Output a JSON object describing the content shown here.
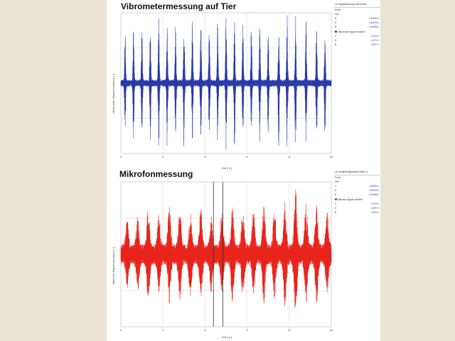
{
  "charts": {
    "vibro": {
      "title": "Vibrometermessung auf Tier",
      "ylabel": "Vibrometer-Signal normiert [ V ]",
      "xlabel": "Zeit [ s ]",
      "color": "#2a3aa8",
      "panel": {
        "header": "Lin Signalspannung Vibrometer ...",
        "probe": "Probe",
        "zeit": "Zeit",
        "rows1": [
          [
            "D",
            "4.40950 s"
          ],
          [
            "D",
            "4.40000 s"
          ],
          [
            "B",
            "0.44950 s"
          ]
        ],
        "legend": "Vibrometer Signal normiert",
        "rows2": [
          [
            "Y",
            "-0.094 V"
          ],
          [
            "D",
            "0.071 V"
          ],
          [
            "B",
            "0.097 V"
          ]
        ]
      }
    },
    "mikro": {
      "title": "Mikrofonmessung",
      "ylabel": "Mikrofon-Signal normiert [ V ]",
      "xlabel": "Zeit [ s ]",
      "color": "#e8241c",
      "panel": {
        "header": "Lin Vergleichsgeräusche Mikro 3...",
        "probe": "Probe",
        "zeit": "Zeit",
        "rows1": [
          [
            "Y",
            "4.40950 s"
          ],
          [
            "D",
            "4.40000 s"
          ],
          [
            "B",
            "0.44950 s"
          ]
        ],
        "legend": "Mikrofon-Signal normiert",
        "rows2": [
          [
            "Y",
            "0.203 V"
          ],
          [
            "D",
            "-0.009 V"
          ],
          [
            "B",
            "0.203 V"
          ]
        ]
      }
    }
  },
  "chart_data": [
    {
      "type": "line",
      "title": "Vibrometermessung auf Tier",
      "xlabel": "Zeit [ s ]",
      "ylabel": "Vibrometer-Signal normiert [ V ]",
      "xlim": [
        0,
        10
      ],
      "ylim": [
        -1,
        1
      ],
      "x_ticks": [
        "0",
        "2",
        "4",
        "6",
        "8",
        "10"
      ],
      "y_ticks": [
        "1",
        "0.5",
        "0",
        "-0.5",
        "-1"
      ],
      "grid": true,
      "series": [
        {
          "values_description_hidden": "",
          "burst_times": [
            0.2,
            0.6,
            1.0,
            1.4,
            1.8,
            2.2,
            2.6,
            3.0,
            3.4,
            3.8,
            4.2,
            4.6,
            5.0,
            5.4,
            5.8,
            6.2,
            6.6,
            7.0,
            7.5,
            7.9,
            8.3,
            8.8,
            9.3,
            9.7
          ],
          "burst_amplitude": [
            0.75,
            0.75,
            0.8,
            0.85,
            0.9,
            0.92,
            0.9,
            0.92,
            0.88,
            0.9,
            0.85,
            0.88,
            0.92,
            0.9,
            0.88,
            0.82,
            0.8,
            0.75,
            0.9,
            0.95,
            0.98,
            0.9,
            0.85,
            0.8
          ]
        }
      ]
    },
    {
      "type": "line",
      "title": "Mikrofonmessung",
      "xlabel": "Zeit [ s ]",
      "ylabel": "Mikrofon-Signal normiert [ V ]",
      "xlim": [
        0,
        10
      ],
      "ylim": [
        -1,
        1
      ],
      "x_ticks": [
        "0",
        "2",
        "4",
        "6",
        "8",
        "10"
      ],
      "y_ticks": [
        "1",
        "0.5",
        "0",
        "-0.5",
        "-1"
      ],
      "grid": true,
      "cursors": [
        4.4,
        4.85
      ],
      "series": [
        {
          "burst_times": [
            0.3,
            0.8,
            1.3,
            1.8,
            2.3,
            2.8,
            3.3,
            3.8,
            4.3,
            4.8,
            5.3,
            5.8,
            6.3,
            6.8,
            7.3,
            7.8,
            8.3,
            8.8,
            9.3,
            9.8
          ],
          "burst_amplitude": [
            0.35,
            0.4,
            0.5,
            0.45,
            0.55,
            0.5,
            0.45,
            0.5,
            0.4,
            0.45,
            0.55,
            0.5,
            0.45,
            0.55,
            0.5,
            0.6,
            0.8,
            0.6,
            0.55,
            0.45
          ]
        }
      ]
    }
  ]
}
